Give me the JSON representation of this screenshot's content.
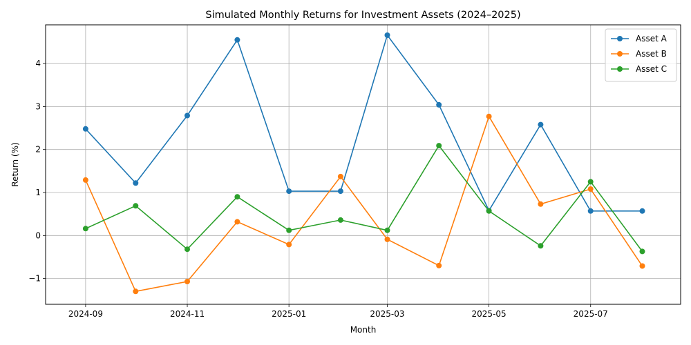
{
  "chart_data": {
    "type": "line",
    "title": "Simulated Monthly Returns for Investment Assets (2024–2025)",
    "xlabel": "Month",
    "ylabel": "Return (%)",
    "x": [
      "2024-09",
      "2024-10",
      "2024-11",
      "2024-12",
      "2025-01",
      "2025-02",
      "2025-03",
      "2025-04",
      "2025-05",
      "2025-06",
      "2025-07",
      "2025-08"
    ],
    "x_ticks": [
      "2024-09",
      "2024-11",
      "2025-01",
      "2025-03",
      "2025-05",
      "2025-07"
    ],
    "xlim": [
      "2024-08-08",
      "2025-08-24"
    ],
    "y_ticks": [
      -1,
      0,
      1,
      2,
      3,
      4
    ],
    "y_tick_labels": [
      "−1",
      "0",
      "1",
      "2",
      "3",
      "4"
    ],
    "ylim": [
      -1.6,
      4.9
    ],
    "grid": true,
    "legend_position": "top-right",
    "series": [
      {
        "name": "Asset A",
        "color": "#1f77b4",
        "values": [
          2.48,
          1.22,
          2.79,
          4.55,
          1.03,
          1.03,
          4.66,
          3.04,
          0.58,
          2.58,
          0.57,
          0.57
        ]
      },
      {
        "name": "Asset B",
        "color": "#ff7f0e",
        "values": [
          1.29,
          -1.3,
          -1.07,
          0.32,
          -0.21,
          1.37,
          -0.09,
          -0.7,
          2.77,
          0.73,
          1.08,
          -0.71
        ]
      },
      {
        "name": "Asset C",
        "color": "#2ca02c",
        "values": [
          0.16,
          0.69,
          -0.32,
          0.9,
          0.12,
          0.36,
          0.12,
          2.09,
          0.57,
          -0.24,
          1.25,
          -0.37
        ]
      }
    ]
  }
}
